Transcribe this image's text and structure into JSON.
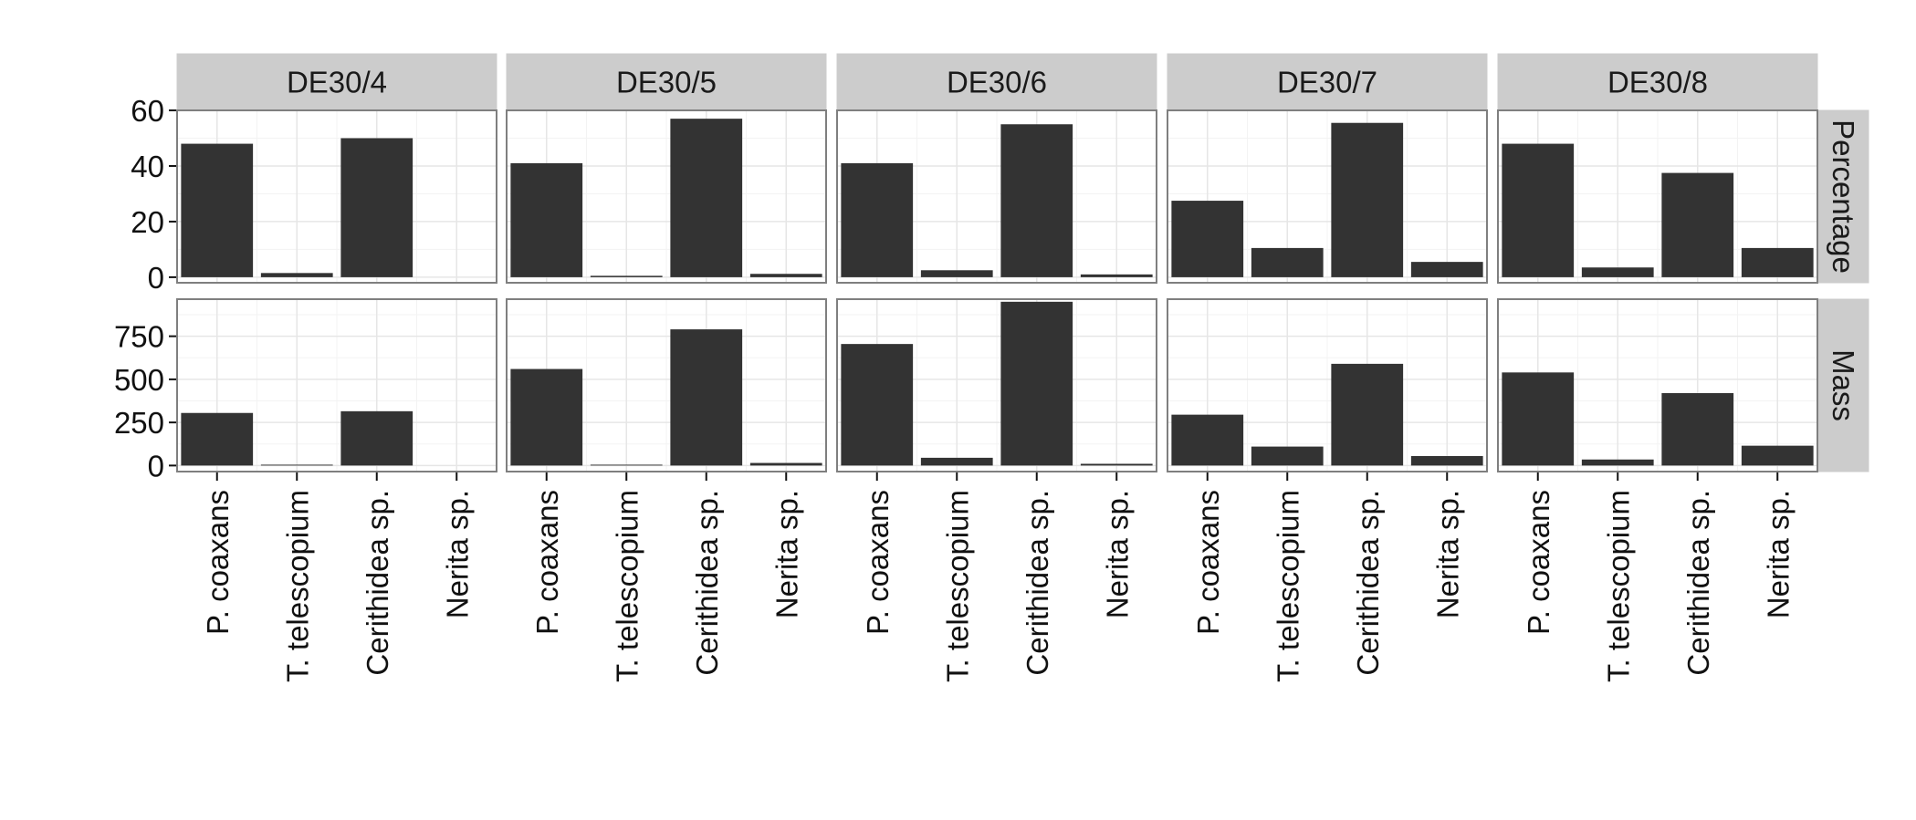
{
  "chart_data": {
    "type": "bar",
    "facet_columns": [
      "DE30/4",
      "DE30/5",
      "DE30/6",
      "DE30/7",
      "DE30/8"
    ],
    "facet_rows": [
      "Percentage",
      "Mass"
    ],
    "categories": [
      "P. coaxans",
      "T. telescopium",
      "Cerithidea sp.",
      "Nerita sp."
    ],
    "rows": [
      {
        "name": "Percentage",
        "ylim": [
          -2,
          60
        ],
        "yticks": [
          0,
          20,
          40,
          60
        ],
        "values": [
          [
            48,
            1.5,
            50,
            0
          ],
          [
            41,
            0.5,
            57,
            1.2
          ],
          [
            41,
            2.5,
            55,
            1
          ],
          [
            27.5,
            10.5,
            55.5,
            5.5
          ],
          [
            48,
            3.5,
            37.5,
            10.5
          ]
        ]
      },
      {
        "name": "Mass",
        "ylim": [
          -35,
          965
        ],
        "yticks": [
          0,
          250,
          500,
          750
        ],
        "values": [
          [
            305,
            5,
            315,
            0
          ],
          [
            560,
            5,
            790,
            15
          ],
          [
            705,
            45,
            950,
            10
          ],
          [
            295,
            110,
            590,
            55
          ],
          [
            540,
            35,
            420,
            115
          ]
        ]
      }
    ],
    "xlabel": "",
    "ylabel": "",
    "grid": true,
    "colors": {
      "bar": "#333333",
      "strip_fill": "#cccccc",
      "panel_border": "#7f7f7f",
      "grid_major": "#e6e6e6",
      "grid_minor": "#f3f3f3"
    }
  }
}
